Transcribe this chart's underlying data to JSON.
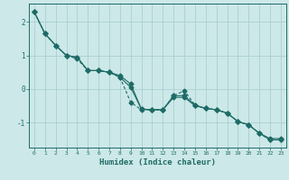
{
  "xlabel": "Humidex (Indice chaleur)",
  "bg_color": "#cce8e8",
  "line_color": "#1e6b66",
  "grid_color": "#aacfcf",
  "xlim": [
    -0.5,
    23.5
  ],
  "ylim": [
    -1.75,
    2.55
  ],
  "yticks": [
    -1,
    0,
    1,
    2
  ],
  "xticks": [
    0,
    1,
    2,
    3,
    4,
    5,
    6,
    7,
    8,
    9,
    10,
    11,
    12,
    13,
    14,
    15,
    16,
    17,
    18,
    19,
    20,
    21,
    22,
    23
  ],
  "line1_x": [
    0,
    1,
    2,
    3,
    4,
    5,
    6,
    7,
    8,
    9,
    10,
    11,
    12,
    13,
    14,
    15,
    16,
    17,
    18,
    19,
    20,
    21,
    22,
    23
  ],
  "line1_y": [
    2.3,
    1.65,
    1.3,
    1.0,
    0.95,
    0.55,
    0.55,
    0.5,
    0.4,
    0.15,
    -0.6,
    -0.62,
    -0.62,
    -0.25,
    -0.25,
    -0.5,
    -0.58,
    -0.62,
    -0.72,
    -0.97,
    -1.07,
    -1.32,
    -1.52,
    -1.52
  ],
  "line2_x": [
    0,
    1,
    2,
    3,
    4,
    5,
    6,
    7,
    8,
    9,
    10,
    11,
    12,
    13,
    14,
    15,
    16,
    17,
    18,
    19,
    20,
    21,
    22,
    23
  ],
  "line2_y": [
    2.3,
    1.65,
    1.3,
    1.0,
    0.95,
    0.55,
    0.55,
    0.5,
    0.35,
    0.05,
    -0.6,
    -0.62,
    -0.62,
    -0.2,
    -0.2,
    -0.48,
    -0.58,
    -0.62,
    -0.72,
    -0.97,
    -1.07,
    -1.32,
    -1.48,
    -1.48
  ],
  "line3_x": [
    0,
    1,
    2,
    3,
    4,
    5,
    6,
    7,
    8,
    9,
    10,
    11,
    12,
    13,
    14,
    15,
    16,
    17,
    18,
    19,
    20,
    21,
    22,
    23
  ],
  "line3_y": [
    2.3,
    1.65,
    1.3,
    1.0,
    0.9,
    0.55,
    0.55,
    0.5,
    0.35,
    -0.4,
    -0.62,
    -0.62,
    -0.62,
    -0.2,
    -0.05,
    -0.48,
    -0.58,
    -0.62,
    -0.72,
    -0.97,
    -1.07,
    -1.32,
    -1.52,
    -1.52
  ]
}
